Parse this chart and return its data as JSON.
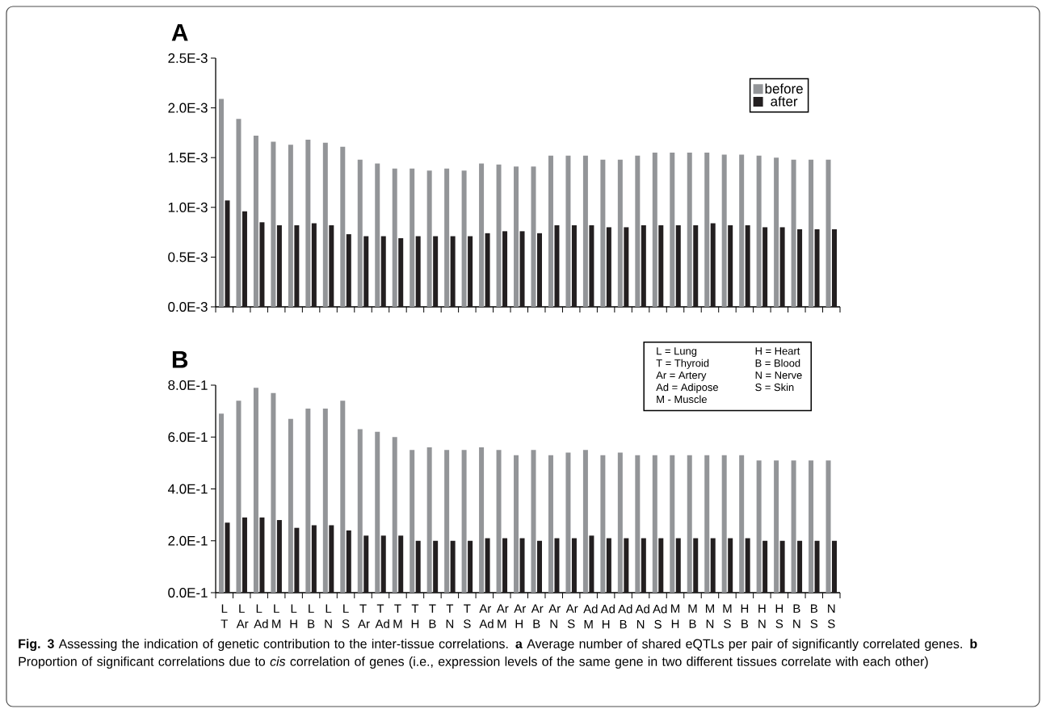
{
  "chart_data": [
    {
      "type": "bar",
      "title": "A",
      "categories": [
        null,
        null,
        null,
        null,
        null,
        null,
        null,
        null,
        null,
        null,
        null,
        null,
        null,
        null,
        null,
        null,
        null,
        null,
        null,
        null,
        null,
        null,
        null,
        null,
        null,
        null,
        null,
        null,
        null,
        null,
        null,
        null,
        null,
        null,
        null,
        null
      ],
      "series": [
        {
          "name": "before",
          "color": "#939598",
          "values": [
            0.00209,
            0.00189,
            0.00172,
            0.00166,
            0.00163,
            0.00168,
            0.00165,
            0.00161,
            0.00148,
            0.00144,
            0.00139,
            0.00139,
            0.00137,
            0.00139,
            0.00137,
            0.00144,
            0.00143,
            0.00141,
            0.00141,
            0.00152,
            0.00152,
            0.00152,
            0.00148,
            0.00148,
            0.00152,
            0.00155,
            0.00155,
            0.00155,
            0.00155,
            0.00153,
            0.00153,
            0.00152,
            0.0015,
            0.00148,
            0.00148,
            0.00148
          ]
        },
        {
          "name": "after",
          "color": "#231f20",
          "values": [
            0.00107,
            0.00096,
            0.00085,
            0.00082,
            0.00082,
            0.00084,
            0.00082,
            0.00073,
            0.00071,
            0.00071,
            0.00069,
            0.00071,
            0.00071,
            0.00071,
            0.00071,
            0.00074,
            0.00076,
            0.00076,
            0.00074,
            0.00082,
            0.00082,
            0.00082,
            0.0008,
            0.0008,
            0.00082,
            0.00082,
            0.00082,
            0.00082,
            0.00084,
            0.00082,
            0.00082,
            0.0008,
            0.0008,
            0.00078,
            0.00078,
            0.00078
          ]
        }
      ],
      "ylim": [
        0,
        0.0025
      ],
      "yticks": [
        {
          "value": 0,
          "label": "0.0E-3"
        },
        {
          "value": 0.0005,
          "label": "0.5E-3"
        },
        {
          "value": 0.001,
          "label": "1.0E-3"
        },
        {
          "value": 0.0015,
          "label": "1.5E-3"
        },
        {
          "value": 0.002,
          "label": "2.0E-3"
        },
        {
          "value": 0.0025,
          "label": "2.5E-3"
        }
      ],
      "legend": "top right",
      "tick_labels": "y"
    },
    {
      "type": "bar",
      "title": "B",
      "categories": [
        "L T",
        "L Ar",
        "L Ad",
        "L M",
        "L H",
        "L B",
        "L N",
        "L S",
        "T Ar",
        "T Ad",
        "T M",
        "T H",
        "T B",
        "T N",
        "T S",
        "Ar Ad",
        "Ar M",
        "Ar H",
        "Ar B",
        "Ar N",
        "Ar S",
        "Ad M",
        "Ad H",
        "Ad B",
        "Ad N",
        "Ad S",
        "M H",
        "M B",
        "M N",
        "M S",
        "H B",
        "H N",
        "H S",
        "B N",
        "B S",
        "N S"
      ],
      "series": [
        {
          "color": "#939598",
          "values": [
            0.69,
            0.74,
            0.79,
            0.77,
            0.67,
            0.71,
            0.71,
            0.74,
            0.63,
            0.62,
            0.6,
            0.55,
            0.56,
            0.55,
            0.55,
            0.56,
            0.55,
            0.53,
            0.55,
            0.53,
            0.54,
            0.55,
            0.53,
            0.54,
            0.53,
            0.53,
            0.53,
            0.53,
            0.53,
            0.53,
            0.53,
            0.51,
            0.51,
            0.51,
            0.51,
            0.51
          ]
        },
        {
          "color": "#231f20",
          "values": [
            0.27,
            0.29,
            0.29,
            0.28,
            0.25,
            0.26,
            0.26,
            0.24,
            0.22,
            0.22,
            0.22,
            0.2,
            0.2,
            0.2,
            0.2,
            0.21,
            0.21,
            0.21,
            0.2,
            0.21,
            0.21,
            0.22,
            0.21,
            0.21,
            0.21,
            0.21,
            0.21,
            0.21,
            0.21,
            0.21,
            0.21,
            0.2,
            0.2,
            0.2,
            0.2,
            0.2
          ]
        }
      ],
      "ylim": [
        0,
        0.8
      ],
      "yticks": [
        {
          "value": 0,
          "label": "0.0E-1"
        },
        {
          "value": 0.2,
          "label": "2.0E-1"
        },
        {
          "value": 0.4,
          "label": "4.0E-1"
        },
        {
          "value": 0.6,
          "label": "6.0E-1"
        },
        {
          "value": 0.8,
          "label": "8.0E-1"
        }
      ],
      "annotations": [
        "L = Lung",
        "T = Thyroid",
        "Ar = Artery",
        "Ad = Adipose",
        "M - Muscle",
        "H = Heart",
        "B = Blood",
        "N = Nerve",
        "S = Skin",
        "**Fig. 3** Assessing the indication of genetic contribution to the inter-tissue correlations. **a** Average number of shared eQTLs per pair of significantly correlated genes. **b** Proportion of significant correlations due to *cis* correlation of genes (i.e., expression levels of the same gene in two different tissues correlate with each other)"
      ]
    }
  ]
}
